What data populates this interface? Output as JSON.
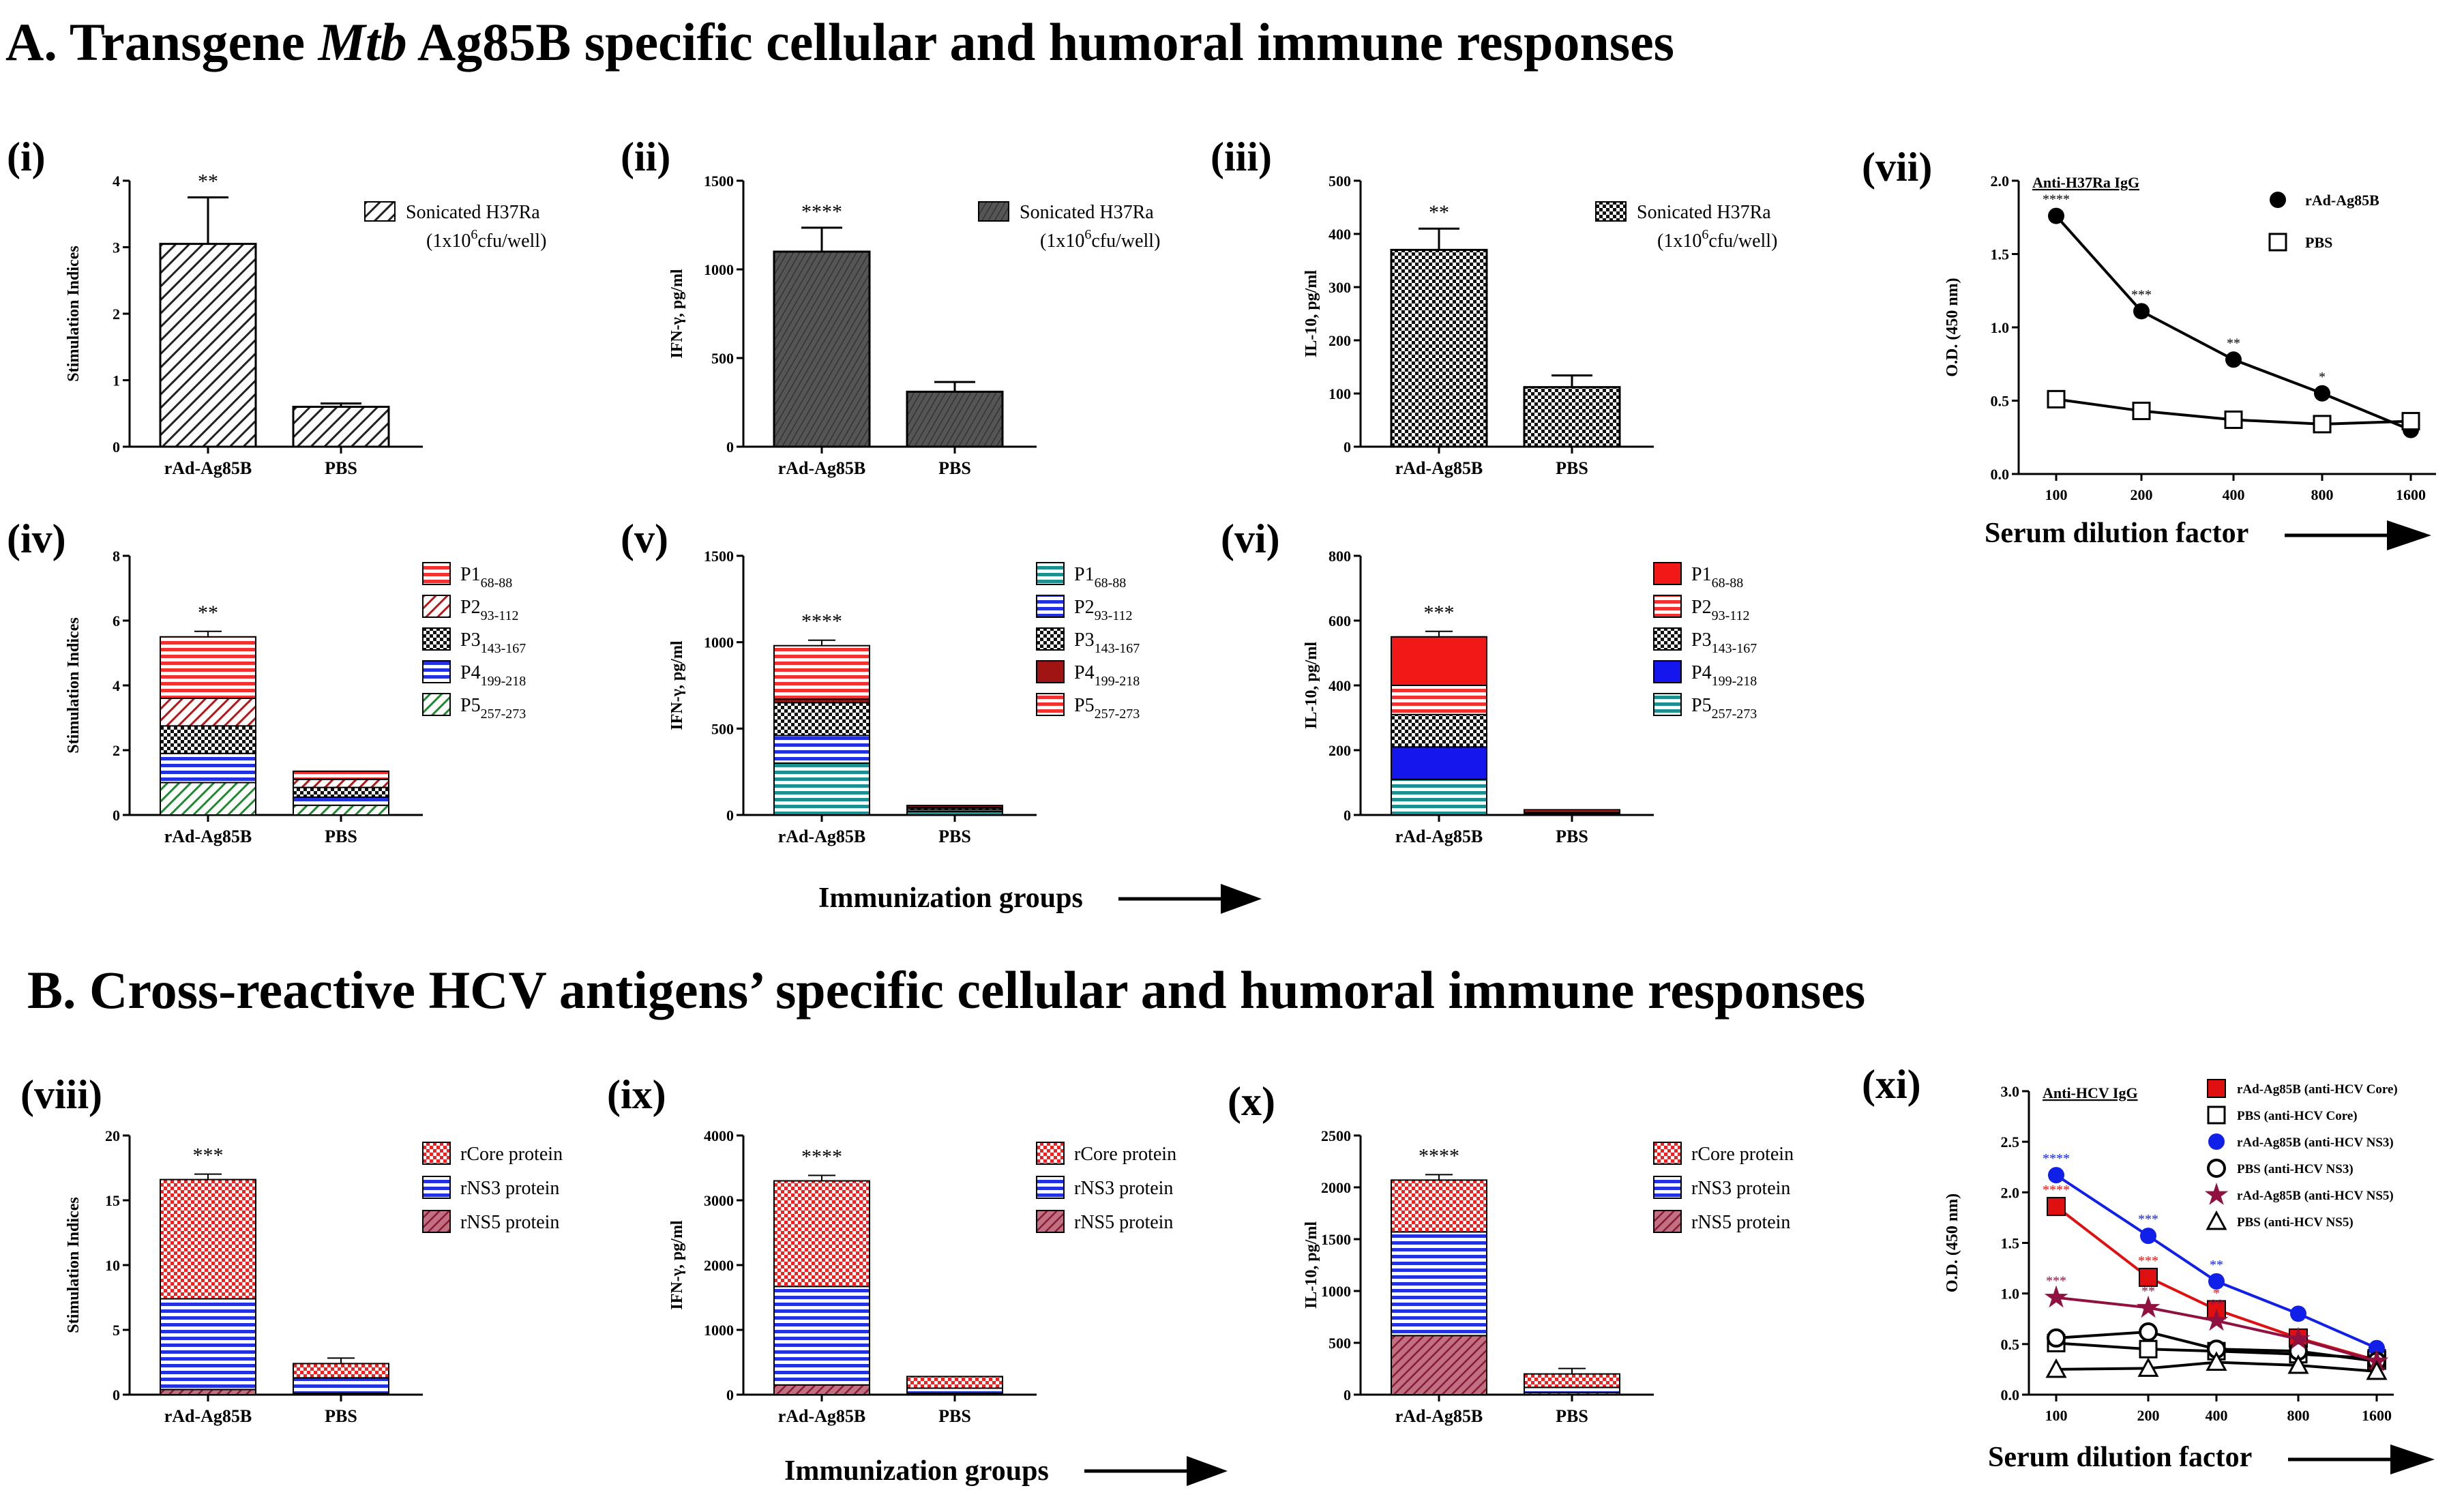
{
  "sections": {
    "A": {
      "prefix": "A.  Transgene ",
      "italic": "Mtb",
      "suffix": " Ag85B specific cellular and humoral immune responses"
    },
    "B": {
      "title": "B.  Cross-reactive HCV antigens’ specific cellular and humoral immune responses"
    }
  },
  "axis_labels": {
    "immunization_groups": "Immunization groups",
    "serum_dilution": "Serum dilution factor"
  },
  "chart_data": [
    {
      "id": "i",
      "label": "(i)",
      "type": "bar",
      "ylabel": "Stimulation Indices",
      "ylim": [
        0,
        4
      ],
      "yticks": [
        0,
        1,
        2,
        3,
        4
      ],
      "categories": [
        "rAd-Ag85B",
        "PBS"
      ],
      "values": [
        3.05,
        0.6
      ],
      "errors": [
        0.7,
        0.05
      ],
      "sig": [
        "**",
        ""
      ],
      "legend": {
        "title": "Sonicated H37Ra",
        "line2": "(1x10",
        "sup": "6",
        "line2end": "cfu/well)"
      }
    },
    {
      "id": "ii",
      "label": "(ii)",
      "type": "bar",
      "ylabel": "IFN-γ, pg/ml",
      "ylim": [
        0,
        1500
      ],
      "yticks": [
        0,
        500,
        1000,
        1500
      ],
      "categories": [
        "rAd-Ag85B",
        "PBS"
      ],
      "values": [
        1100,
        310
      ],
      "errors": [
        135,
        55
      ],
      "sig": [
        "****",
        ""
      ],
      "legend": {
        "title": "Sonicated H37Ra",
        "line2": "(1x10",
        "sup": "6",
        "line2end": "cfu/well)"
      }
    },
    {
      "id": "iii",
      "label": "(iii)",
      "type": "bar",
      "ylabel": "IL-10, pg/ml",
      "ylim": [
        0,
        500
      ],
      "yticks": [
        0,
        100,
        200,
        300,
        400,
        500
      ],
      "categories": [
        "rAd-Ag85B",
        "PBS"
      ],
      "values": [
        370,
        112
      ],
      "errors": [
        40,
        22
      ],
      "sig": [
        "**",
        ""
      ],
      "legend": {
        "title": "Sonicated H37Ra",
        "line2": "(1x10",
        "sup": "6",
        "line2end": "cfu/well)"
      }
    },
    {
      "id": "iv",
      "label": "(iv)",
      "type": "stacked-bar",
      "ylabel": "Stimulation Indices",
      "ylim": [
        0,
        8
      ],
      "yticks": [
        0,
        2,
        4,
        6,
        8
      ],
      "categories": [
        "rAd-Ag85B",
        "PBS"
      ],
      "sig": [
        "**",
        ""
      ],
      "series": [
        {
          "name": "P5",
          "sub": "257-273",
          "values": [
            1.0,
            0.3
          ]
        },
        {
          "name": "P4",
          "sub": "199-218",
          "values": [
            0.9,
            0.25
          ]
        },
        {
          "name": "P3",
          "sub": "143-167",
          "values": [
            0.85,
            0.3
          ]
        },
        {
          "name": "P2",
          "sub": "93-112",
          "values": [
            0.85,
            0.25
          ]
        },
        {
          "name": "P1",
          "sub": "68-88",
          "values": [
            1.9,
            0.25
          ]
        }
      ]
    },
    {
      "id": "v",
      "label": "(v)",
      "type": "stacked-bar",
      "ylabel": "IFN-γ, pg/ml",
      "ylim": [
        0,
        1500
      ],
      "yticks": [
        0,
        500,
        1000,
        1500
      ],
      "categories": [
        "rAd-Ag85B",
        "PBS"
      ],
      "sig": [
        "****",
        ""
      ],
      "series": [
        {
          "name": "P1",
          "sub": "68-88",
          "values": [
            300,
            20
          ]
        },
        {
          "name": "P2",
          "sub": "93-112",
          "values": [
            160,
            10
          ]
        },
        {
          "name": "P3",
          "sub": "143-167",
          "values": [
            190,
            10
          ]
        },
        {
          "name": "P4",
          "sub": "199-218",
          "values": [
            20,
            5
          ]
        },
        {
          "name": "P5",
          "sub": "257-273",
          "values": [
            310,
            10
          ]
        }
      ]
    },
    {
      "id": "vi",
      "label": "(vi)",
      "type": "stacked-bar",
      "ylabel": "IL-10, pg/ml",
      "ylim": [
        0,
        800
      ],
      "yticks": [
        0,
        200,
        400,
        600,
        800
      ],
      "categories": [
        "rAd-Ag85B",
        "PBS"
      ],
      "sig": [
        "***",
        ""
      ],
      "series": [
        {
          "name": "P5",
          "sub": "257-273",
          "values": [
            110,
            2
          ]
        },
        {
          "name": "P4",
          "sub": "199-218",
          "values": [
            100,
            2
          ]
        },
        {
          "name": "P3",
          "sub": "143-167",
          "values": [
            100,
            2
          ]
        },
        {
          "name": "P2",
          "sub": "93-112",
          "values": [
            90,
            2
          ]
        },
        {
          "name": "P1",
          "sub": "68-88",
          "values": [
            150,
            8
          ]
        }
      ]
    },
    {
      "id": "vii",
      "label": "(vii)",
      "type": "line",
      "title": "Anti-H37Ra IgG",
      "ylabel": "O.D. (450 nm)",
      "ylim": [
        0,
        2
      ],
      "yticks": [
        0.0,
        0.5,
        1.0,
        1.5,
        2.0
      ],
      "x": [
        100,
        200,
        400,
        800,
        1600
      ],
      "series": [
        {
          "name": "rAd-Ag85B",
          "values": [
            1.76,
            1.11,
            0.78,
            0.55,
            0.3
          ],
          "sig": [
            "****",
            "***",
            "**",
            "*",
            ""
          ]
        },
        {
          "name": "PBS",
          "values": [
            0.51,
            0.43,
            0.37,
            0.34,
            0.36
          ]
        }
      ]
    },
    {
      "id": "viii",
      "label": "(viii)",
      "type": "stacked-bar",
      "ylabel": "Stimulation Indices",
      "ylim": [
        0,
        20
      ],
      "yticks": [
        0,
        5,
        10,
        15,
        20
      ],
      "categories": [
        "rAd-Ag85B",
        "PBS"
      ],
      "sig": [
        "***",
        ""
      ],
      "series": [
        {
          "name": "rNS5 protein",
          "values": [
            0.4,
            0.1
          ]
        },
        {
          "name": "rNS3 protein",
          "values": [
            7.0,
            1.2
          ]
        },
        {
          "name": "rCore protein",
          "values": [
            9.2,
            1.1
          ]
        }
      ]
    },
    {
      "id": "ix",
      "label": "(ix)",
      "type": "stacked-bar",
      "ylabel": "IFN-γ, pg/ml",
      "ylim": [
        0,
        4000
      ],
      "yticks": [
        0,
        1000,
        2000,
        3000,
        4000
      ],
      "categories": [
        "rAd-Ag85B",
        "PBS"
      ],
      "sig": [
        "****",
        ""
      ],
      "series": [
        {
          "name": "rNS5 protein",
          "values": [
            150,
            20
          ]
        },
        {
          "name": "rNS3 protein",
          "values": [
            1520,
            80
          ]
        },
        {
          "name": "rCore protein",
          "values": [
            1630,
            180
          ]
        }
      ]
    },
    {
      "id": "x",
      "label": "(x)",
      "type": "stacked-bar",
      "ylabel": "IL-10, pg/ml",
      "ylim": [
        0,
        2500
      ],
      "yticks": [
        0,
        500,
        1000,
        1500,
        2000,
        2500
      ],
      "categories": [
        "rAd-Ag85B",
        "PBS"
      ],
      "sig": [
        "****",
        ""
      ],
      "series": [
        {
          "name": "rNS5 protein",
          "values": [
            570,
            20
          ]
        },
        {
          "name": "rNS3 protein",
          "values": [
            1000,
            50
          ]
        },
        {
          "name": "rCore protein",
          "values": [
            500,
            130
          ]
        }
      ]
    },
    {
      "id": "xi",
      "label": "(xi)",
      "type": "line",
      "title": "Anti-HCV IgG",
      "ylabel": "O.D. (450 nm)",
      "ylim": [
        0,
        3
      ],
      "yticks": [
        0.0,
        0.5,
        1.0,
        1.5,
        2.0,
        2.5,
        3.0
      ],
      "x": [
        100,
        200,
        400,
        800,
        1600
      ],
      "series": [
        {
          "name": "rAd-Ag85B (anti-HCV Core)",
          "values": [
            1.86,
            1.16,
            0.84,
            0.56,
            0.34
          ],
          "sig": [
            "****",
            "***",
            "*",
            "",
            " "
          ]
        },
        {
          "name": "PBS (anti-HCV Core)",
          "values": [
            0.51,
            0.45,
            0.43,
            0.4,
            0.36
          ]
        },
        {
          "name": "rAd-Ag85B (anti-HCV NS3)",
          "values": [
            2.17,
            1.57,
            1.12,
            0.8,
            0.46
          ],
          "sig": [
            "****",
            "***",
            "**",
            "",
            ""
          ]
        },
        {
          "name": "PBS (anti-HCV NS3)",
          "values": [
            0.56,
            0.62,
            0.45,
            0.43,
            0.33
          ]
        },
        {
          "name": "rAd-Ag85B (anti-HCV NS5)",
          "values": [
            0.96,
            0.86,
            0.73,
            0.55,
            0.33
          ],
          "sig": [
            "***",
            "**",
            "**",
            "",
            ""
          ]
        },
        {
          "name": "PBS (anti-HCV NS5)",
          "values": [
            0.25,
            0.26,
            0.32,
            0.29,
            0.23
          ]
        }
      ]
    }
  ]
}
